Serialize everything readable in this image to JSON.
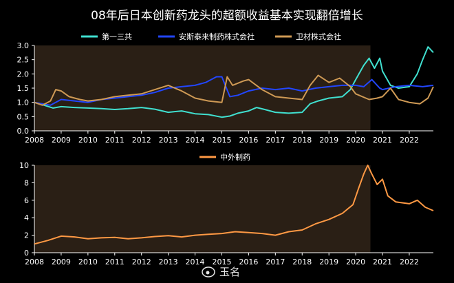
{
  "title": "08年后日本创新药龙头的超额收益基本实现翻倍增长",
  "watermark": {
    "text": "玉名",
    "icon": "weibo-icon"
  },
  "colors": {
    "background": "#000000",
    "shade": "#2a1f15",
    "axis": "#ffffff"
  },
  "chart_data": [
    {
      "type": "line",
      "title": "",
      "xlabel": "",
      "ylabel": "",
      "x_ticks": [
        "2008",
        "2009",
        "2010",
        "2011",
        "2012",
        "2013",
        "2014",
        "2015",
        "2016",
        "2017",
        "2018",
        "2019",
        "2020",
        "2021",
        "2022"
      ],
      "xlim": [
        2008,
        2022.9
      ],
      "y_ticks": [
        "0.0",
        "0.5",
        "1.0",
        "1.5",
        "2.0",
        "2.5",
        "3.0"
      ],
      "ylim": [
        0,
        3.0
      ],
      "shaded_x_range": [
        2008,
        2020.55
      ],
      "legend_position": "top",
      "series": [
        {
          "name": "第一三共",
          "color": "#40e0d0",
          "points": [
            [
              2008,
              1.0
            ],
            [
              2008.3,
              0.92
            ],
            [
              2008.7,
              0.8
            ],
            [
              2009,
              0.85
            ],
            [
              2009.5,
              0.82
            ],
            [
              2010,
              0.8
            ],
            [
              2010.5,
              0.78
            ],
            [
              2011,
              0.75
            ],
            [
              2011.5,
              0.78
            ],
            [
              2012,
              0.82
            ],
            [
              2012.5,
              0.76
            ],
            [
              2013,
              0.65
            ],
            [
              2013.5,
              0.7
            ],
            [
              2014,
              0.6
            ],
            [
              2014.5,
              0.57
            ],
            [
              2015,
              0.48
            ],
            [
              2015.3,
              0.52
            ],
            [
              2015.6,
              0.62
            ],
            [
              2016,
              0.7
            ],
            [
              2016.3,
              0.82
            ],
            [
              2016.6,
              0.75
            ],
            [
              2017,
              0.65
            ],
            [
              2017.5,
              0.62
            ],
            [
              2018,
              0.65
            ],
            [
              2018.3,
              0.95
            ],
            [
              2018.6,
              1.05
            ],
            [
              2019,
              1.15
            ],
            [
              2019.5,
              1.2
            ],
            [
              2019.8,
              1.45
            ],
            [
              2020,
              1.8
            ],
            [
              2020.3,
              2.3
            ],
            [
              2020.5,
              2.55
            ],
            [
              2020.7,
              2.2
            ],
            [
              2020.9,
              2.55
            ],
            [
              2021,
              2.1
            ],
            [
              2021.3,
              1.6
            ],
            [
              2021.6,
              1.5
            ],
            [
              2022,
              1.55
            ],
            [
              2022.3,
              2.0
            ],
            [
              2022.5,
              2.5
            ],
            [
              2022.7,
              2.95
            ],
            [
              2022.9,
              2.75
            ]
          ]
        },
        {
          "name": "安斯泰来制药株式会社",
          "color": "#2246ff",
          "points": [
            [
              2008,
              1.0
            ],
            [
              2008.3,
              0.95
            ],
            [
              2008.6,
              0.9
            ],
            [
              2009,
              1.1
            ],
            [
              2009.5,
              1.05
            ],
            [
              2010,
              1.0
            ],
            [
              2010.5,
              1.1
            ],
            [
              2011,
              1.15
            ],
            [
              2011.5,
              1.2
            ],
            [
              2012,
              1.25
            ],
            [
              2012.5,
              1.35
            ],
            [
              2013,
              1.5
            ],
            [
              2013.5,
              1.55
            ],
            [
              2014,
              1.6
            ],
            [
              2014.4,
              1.7
            ],
            [
              2014.8,
              1.9
            ],
            [
              2015,
              1.9
            ],
            [
              2015.3,
              1.2
            ],
            [
              2015.6,
              1.25
            ],
            [
              2016,
              1.4
            ],
            [
              2016.5,
              1.5
            ],
            [
              2017,
              1.45
            ],
            [
              2017.5,
              1.5
            ],
            [
              2018,
              1.4
            ],
            [
              2018.5,
              1.5
            ],
            [
              2019,
              1.55
            ],
            [
              2019.5,
              1.6
            ],
            [
              2020,
              1.6
            ],
            [
              2020.3,
              1.55
            ],
            [
              2020.6,
              1.8
            ],
            [
              2020.9,
              1.5
            ],
            [
              2021,
              1.45
            ],
            [
              2021.5,
              1.55
            ],
            [
              2022,
              1.6
            ],
            [
              2022.5,
              1.55
            ],
            [
              2022.9,
              1.6
            ]
          ]
        },
        {
          "name": "卫材株式会社",
          "color": "#cf9a55",
          "points": [
            [
              2008,
              1.0
            ],
            [
              2008.3,
              0.9
            ],
            [
              2008.6,
              1.05
            ],
            [
              2008.8,
              1.45
            ],
            [
              2009,
              1.4
            ],
            [
              2009.3,
              1.2
            ],
            [
              2009.7,
              1.1
            ],
            [
              2010,
              1.05
            ],
            [
              2010.5,
              1.1
            ],
            [
              2011,
              1.2
            ],
            [
              2011.5,
              1.25
            ],
            [
              2012,
              1.3
            ],
            [
              2012.5,
              1.45
            ],
            [
              2013,
              1.6
            ],
            [
              2013.5,
              1.4
            ],
            [
              2014,
              1.15
            ],
            [
              2014.5,
              1.05
            ],
            [
              2015,
              1.0
            ],
            [
              2015.2,
              1.9
            ],
            [
              2015.4,
              1.6
            ],
            [
              2015.8,
              1.75
            ],
            [
              2016,
              1.8
            ],
            [
              2016.5,
              1.45
            ],
            [
              2017,
              1.2
            ],
            [
              2017.5,
              1.15
            ],
            [
              2018,
              1.1
            ],
            [
              2018.3,
              1.6
            ],
            [
              2018.6,
              1.95
            ],
            [
              2019,
              1.7
            ],
            [
              2019.4,
              1.85
            ],
            [
              2019.8,
              1.55
            ],
            [
              2020,
              1.3
            ],
            [
              2020.5,
              1.1
            ],
            [
              2020.8,
              1.15
            ],
            [
              2021,
              1.2
            ],
            [
              2021.3,
              1.5
            ],
            [
              2021.6,
              1.1
            ],
            [
              2022,
              1.0
            ],
            [
              2022.4,
              0.95
            ],
            [
              2022.7,
              1.15
            ],
            [
              2022.9,
              1.55
            ]
          ]
        }
      ]
    },
    {
      "type": "line",
      "title": "",
      "xlabel": "",
      "ylabel": "",
      "x_ticks": [
        "2008",
        "2009",
        "2010",
        "2011",
        "2012",
        "2013",
        "2014",
        "2015",
        "2016",
        "2017",
        "2018",
        "2019",
        "2020",
        "2021",
        "2022"
      ],
      "xlim": [
        2008,
        2022.9
      ],
      "y_ticks": [
        "0",
        "2",
        "4",
        "6",
        "8",
        "10"
      ],
      "ylim": [
        0,
        10
      ],
      "shaded_x_range": [
        2008,
        2020.55
      ],
      "legend_position": "top",
      "series": [
        {
          "name": "中外制药",
          "color": "#ff9944",
          "points": [
            [
              2008,
              1.0
            ],
            [
              2008.5,
              1.4
            ],
            [
              2009,
              1.9
            ],
            [
              2009.5,
              1.8
            ],
            [
              2010,
              1.6
            ],
            [
              2010.5,
              1.7
            ],
            [
              2011,
              1.75
            ],
            [
              2011.5,
              1.6
            ],
            [
              2012,
              1.7
            ],
            [
              2012.5,
              1.85
            ],
            [
              2013,
              1.95
            ],
            [
              2013.5,
              1.8
            ],
            [
              2014,
              2.0
            ],
            [
              2014.5,
              2.1
            ],
            [
              2015,
              2.2
            ],
            [
              2015.5,
              2.4
            ],
            [
              2016,
              2.3
            ],
            [
              2016.5,
              2.2
            ],
            [
              2017,
              2.0
            ],
            [
              2017.5,
              2.4
            ],
            [
              2018,
              2.6
            ],
            [
              2018.5,
              3.3
            ],
            [
              2019,
              3.8
            ],
            [
              2019.5,
              4.5
            ],
            [
              2019.9,
              5.5
            ],
            [
              2020.1,
              7.3
            ],
            [
              2020.3,
              9.0
            ],
            [
              2020.45,
              10.0
            ],
            [
              2020.6,
              9.0
            ],
            [
              2020.8,
              7.8
            ],
            [
              2021,
              8.4
            ],
            [
              2021.2,
              6.5
            ],
            [
              2021.5,
              5.8
            ],
            [
              2022,
              5.6
            ],
            [
              2022.3,
              6.0
            ],
            [
              2022.6,
              5.2
            ],
            [
              2022.9,
              4.8
            ]
          ]
        }
      ]
    }
  ]
}
